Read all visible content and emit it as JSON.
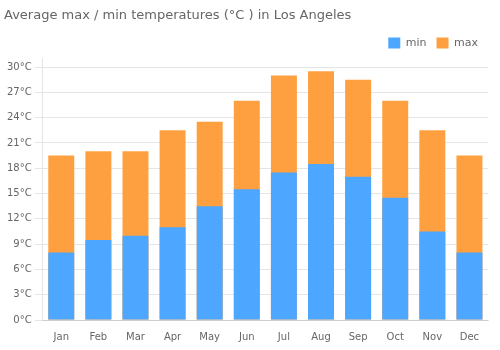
{
  "chart_data": {
    "type": "bar",
    "title": "Average max / min temperatures (°C ) in Los Angeles",
    "categories": [
      "Jan",
      "Feb",
      "Mar",
      "Apr",
      "May",
      "Jun",
      "Jul",
      "Aug",
      "Sep",
      "Oct",
      "Nov",
      "Dec"
    ],
    "series": [
      {
        "name": "min",
        "color": "#4da6ff",
        "values": [
          8,
          9.5,
          10,
          11,
          13.5,
          15.5,
          17.5,
          18.5,
          17,
          14.5,
          10.5,
          8
        ]
      },
      {
        "name": "max",
        "color": "#ffa040",
        "values": [
          19.5,
          20,
          20,
          22.5,
          23.5,
          26,
          29,
          29.5,
          28.5,
          26,
          22.5,
          19.5
        ]
      }
    ],
    "ylim": [
      0,
      31
    ],
    "yticks": [
      {
        "value": 0,
        "label": "0°C"
      },
      {
        "value": 3,
        "label": "3°C"
      },
      {
        "value": 6,
        "label": "6°C"
      },
      {
        "value": 9,
        "label": "9°C"
      },
      {
        "value": 12,
        "label": "12°C"
      },
      {
        "value": 15,
        "label": "15°C"
      },
      {
        "value": 18,
        "label": "18°C"
      },
      {
        "value": 21,
        "label": "21°C"
      },
      {
        "value": 24,
        "label": "24°C"
      },
      {
        "value": 27,
        "label": "27°C"
      },
      {
        "value": 30,
        "label": "30°C"
      }
    ],
    "grid": true,
    "legend": "top-right"
  }
}
